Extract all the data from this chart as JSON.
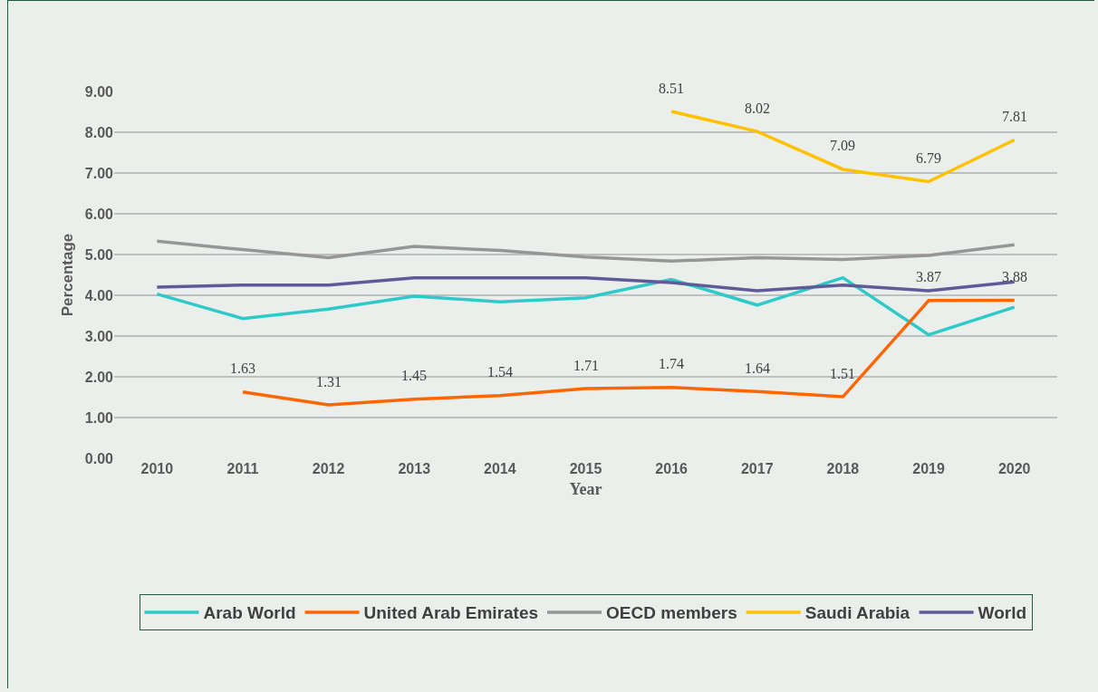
{
  "chart_data": {
    "type": "line",
    "xlabel": "Year",
    "ylabel": "Percentage",
    "categories": [
      "2010",
      "2011",
      "2012",
      "2013",
      "2014",
      "2015",
      "2016",
      "2017",
      "2018",
      "2019",
      "2020"
    ],
    "series": [
      {
        "name": "Arab World",
        "color": "#2ec9c9",
        "values": [
          4.03,
          3.43,
          3.66,
          3.98,
          3.84,
          3.94,
          4.39,
          3.76,
          4.43,
          3.03,
          3.71
        ]
      },
      {
        "name": "United Arab Emirates",
        "color": "#ff6600",
        "values": [
          null,
          1.63,
          1.31,
          1.45,
          1.54,
          1.71,
          1.74,
          1.64,
          1.51,
          3.87,
          3.88
        ],
        "value_labels": [
          null,
          "1.63",
          "1.31",
          "1.45",
          "1.54",
          "1.71",
          "1.74",
          "1.64",
          "1.51",
          "3.87",
          "3.88"
        ]
      },
      {
        "name": "OECD members",
        "color": "#969696",
        "values": [
          5.33,
          5.12,
          4.92,
          5.2,
          5.1,
          4.94,
          4.84,
          4.92,
          4.88,
          4.98,
          5.24
        ]
      },
      {
        "name": "Saudi Arabia",
        "color": "#ffc000",
        "values": [
          null,
          null,
          null,
          null,
          null,
          null,
          8.51,
          8.02,
          7.09,
          6.79,
          7.81
        ],
        "value_labels": [
          null,
          null,
          null,
          null,
          null,
          null,
          "8.51",
          "8.02",
          "7.09",
          "6.79",
          "7.81"
        ]
      },
      {
        "name": "World",
        "color": "#5f5b99",
        "values": [
          4.2,
          4.25,
          4.25,
          4.43,
          4.43,
          4.43,
          4.31,
          4.11,
          4.25,
          4.11,
          4.33
        ]
      }
    ],
    "ylim": [
      0,
      9
    ],
    "yticks": [
      {
        "value": 0,
        "label": "0.00"
      },
      {
        "value": 1,
        "label": "1.00"
      },
      {
        "value": 2,
        "label": "2.00"
      },
      {
        "value": 3,
        "label": "3.00"
      },
      {
        "value": 4,
        "label": "4.00"
      },
      {
        "value": 5,
        "label": "5.00"
      },
      {
        "value": 6,
        "label": "6.00"
      },
      {
        "value": 7,
        "label": "7.00"
      },
      {
        "value": 8,
        "label": "8.00"
      },
      {
        "value": 9,
        "label": "9.00"
      }
    ],
    "grid": "y",
    "legend": "bottom",
    "marker": "none",
    "line_style": "solid"
  }
}
